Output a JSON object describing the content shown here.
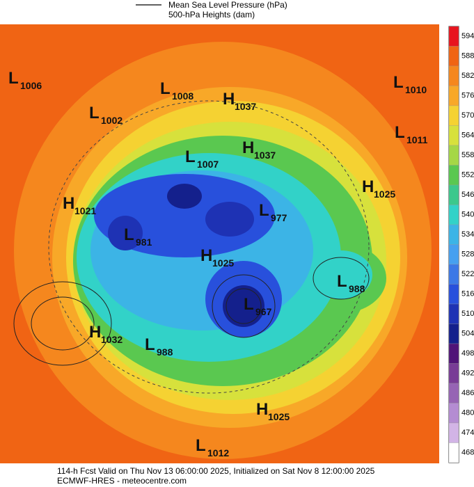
{
  "legend": [
    "Mean Sea Level Pressure (hPa)",
    "500-hPa Heights (dam)"
  ],
  "centers": [
    {
      "type": "L",
      "value": 1006
    },
    {
      "type": "L",
      "value": 1008
    },
    {
      "type": "H",
      "value": 1037
    },
    {
      "type": "L",
      "value": 1002
    },
    {
      "type": "L",
      "value": 1010
    },
    {
      "type": "L",
      "value": 1011
    },
    {
      "type": "H",
      "value": 1037
    },
    {
      "type": "L",
      "value": 1007
    },
    {
      "type": "H",
      "value": 1025
    },
    {
      "type": "H",
      "value": 1021
    },
    {
      "type": "L",
      "value": 977
    },
    {
      "type": "L",
      "value": 981
    },
    {
      "type": "H",
      "value": 1025
    },
    {
      "type": "L",
      "value": 988
    },
    {
      "type": "L",
      "value": 967
    },
    {
      "type": "H",
      "value": 1032
    },
    {
      "type": "L",
      "value": 988
    },
    {
      "type": "H",
      "value": 1025
    },
    {
      "type": "L",
      "value": 1012
    }
  ],
  "colorbar": {
    "ticks": [
      594,
      588,
      582,
      576,
      570,
      564,
      558,
      552,
      546,
      540,
      534,
      528,
      522,
      516,
      510,
      504,
      498,
      492,
      486,
      480,
      474,
      468
    ],
    "colors": [
      "#e8141e",
      "#f06414",
      "#f5871e",
      "#f8a828",
      "#f5d232",
      "#d7e13c",
      "#a5d746",
      "#5ac850",
      "#3cc88c",
      "#32d2c8",
      "#3cb4e6",
      "#46a0f0",
      "#3c78e6",
      "#2850dc",
      "#1e32b4",
      "#14208c",
      "#501478",
      "#783c96",
      "#9664b4",
      "#b48cd2",
      "#d2b4e6",
      "#ffffff"
    ]
  },
  "footer": [
    "114-h Fcst Valid on Thu Nov 13 06:00:00 2025, Initialized on Sat Nov  8 12:00:00 2025",
    "ECMWF-HRES - meteocentre.com"
  ]
}
